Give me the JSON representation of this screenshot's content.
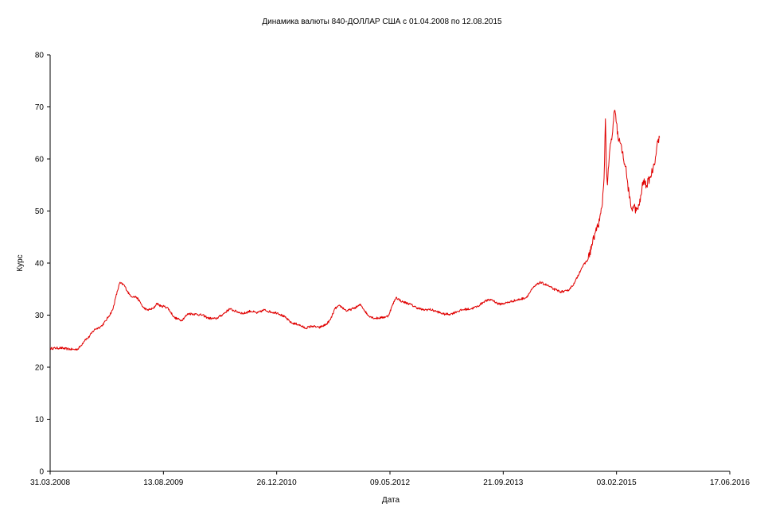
{
  "chart_data": {
    "type": "line",
    "title": "Динамика валюты 840-ДОЛЛАР США с 01.04.2008 по 12.08.2015",
    "xlabel": "Дата",
    "ylabel": "Курс",
    "ylim": [
      0,
      80
    ],
    "yticks": [
      0,
      10,
      20,
      30,
      40,
      50,
      60,
      70,
      80
    ],
    "xlim": [
      "2008-03-31",
      "2016-06-17"
    ],
    "xtick_labels": [
      "31.03.2008",
      "13.08.2009",
      "26.12.2010",
      "09.05.2012",
      "21.09.2013",
      "03.02.2015",
      "17.06.2016"
    ],
    "grid": false,
    "line_color": "#e00000",
    "series": [
      {
        "x": [
          "2008-04-01",
          "2008-05-15",
          "2008-06-15",
          "2008-07-15",
          "2008-08-01",
          "2008-08-15",
          "2008-09-01",
          "2008-09-15",
          "2008-10-01",
          "2008-10-15",
          "2008-11-01",
          "2008-11-15",
          "2008-12-01",
          "2008-12-15",
          "2009-01-01",
          "2009-01-15",
          "2009-02-01",
          "2009-02-20",
          "2009-03-15",
          "2009-04-01",
          "2009-04-15",
          "2009-05-01",
          "2009-05-15",
          "2009-06-01",
          "2009-06-15",
          "2009-07-01",
          "2009-07-15",
          "2009-08-01",
          "2009-08-15",
          "2009-09-01",
          "2009-10-01",
          "2009-11-01",
          "2009-12-01",
          "2010-01-01",
          "2010-02-01",
          "2010-03-01",
          "2010-04-01",
          "2010-05-01",
          "2010-06-01",
          "2010-07-01",
          "2010-08-01",
          "2010-09-01",
          "2010-10-01",
          "2010-11-01",
          "2010-12-01",
          "2011-01-01",
          "2011-02-01",
          "2011-03-01",
          "2011-04-01",
          "2011-05-01",
          "2011-06-01",
          "2011-07-01",
          "2011-08-01",
          "2011-08-20",
          "2011-09-10",
          "2011-10-01",
          "2011-11-01",
          "2011-12-01",
          "2012-01-01",
          "2012-02-01",
          "2012-03-01",
          "2012-04-01",
          "2012-05-01",
          "2012-05-20",
          "2012-06-05",
          "2012-07-01",
          "2012-08-01",
          "2012-09-01",
          "2012-10-01",
          "2012-11-01",
          "2012-12-01",
          "2013-01-01",
          "2013-02-01",
          "2013-03-01",
          "2013-04-01",
          "2013-05-01",
          "2013-06-01",
          "2013-07-01",
          "2013-08-01",
          "2013-09-01",
          "2013-10-01",
          "2013-11-01",
          "2013-12-01",
          "2014-01-01",
          "2014-02-01",
          "2014-03-01",
          "2014-04-01",
          "2014-05-01",
          "2014-06-01",
          "2014-07-01",
          "2014-08-01",
          "2014-09-01",
          "2014-10-01",
          "2014-11-01",
          "2014-11-20",
          "2014-12-01",
          "2014-12-10",
          "2014-12-16",
          "2014-12-20",
          "2014-12-25",
          "2015-01-05",
          "2015-01-15",
          "2015-01-25",
          "2015-02-03",
          "2015-02-10",
          "2015-02-20",
          "2015-03-01",
          "2015-03-15",
          "2015-04-01",
          "2015-04-10",
          "2015-04-20",
          "2015-05-01",
          "2015-05-15",
          "2015-06-01",
          "2015-06-15",
          "2015-07-01",
          "2015-07-15",
          "2015-07-25",
          "2015-08-01",
          "2015-08-06",
          "2015-08-12"
        ],
        "y": [
          23.6,
          23.7,
          23.5,
          23.4,
          23.5,
          24.2,
          25.3,
          25.6,
          26.6,
          27.3,
          27.6,
          28.0,
          28.9,
          29.8,
          31.0,
          33.5,
          36.2,
          35.8,
          34.0,
          33.5,
          33.5,
          32.6,
          31.5,
          31.0,
          31.1,
          31.3,
          32.3,
          31.7,
          31.7,
          31.4,
          29.5,
          29.0,
          30.3,
          30.2,
          30.0,
          29.4,
          29.3,
          30.1,
          31.2,
          30.7,
          30.3,
          30.8,
          30.4,
          31.0,
          30.6,
          30.4,
          29.6,
          28.5,
          28.2,
          27.5,
          27.9,
          27.6,
          28.2,
          29.1,
          31.3,
          31.8,
          30.8,
          31.3,
          32.0,
          30.0,
          29.4,
          29.5,
          29.8,
          31.9,
          33.4,
          32.6,
          32.2,
          31.5,
          31.0,
          31.1,
          30.7,
          30.2,
          30.2,
          30.7,
          31.1,
          31.2,
          31.7,
          32.7,
          33.0,
          32.1,
          32.3,
          32.7,
          33.0,
          33.4,
          35.3,
          36.3,
          35.8,
          35.0,
          34.5,
          34.6,
          36.1,
          39.0,
          40.8,
          45.8,
          48.1,
          50.8,
          56.3,
          67.7,
          59.0,
          55.0,
          62.0,
          64.5,
          69.3,
          66.9,
          64.0,
          63.0,
          61.2,
          58.5,
          52.5,
          50.5,
          51.0,
          50.0,
          51.1,
          55.8,
          54.9,
          56.4,
          58.3,
          60.4,
          62.7,
          63.8,
          64.1
        ]
      }
    ]
  }
}
